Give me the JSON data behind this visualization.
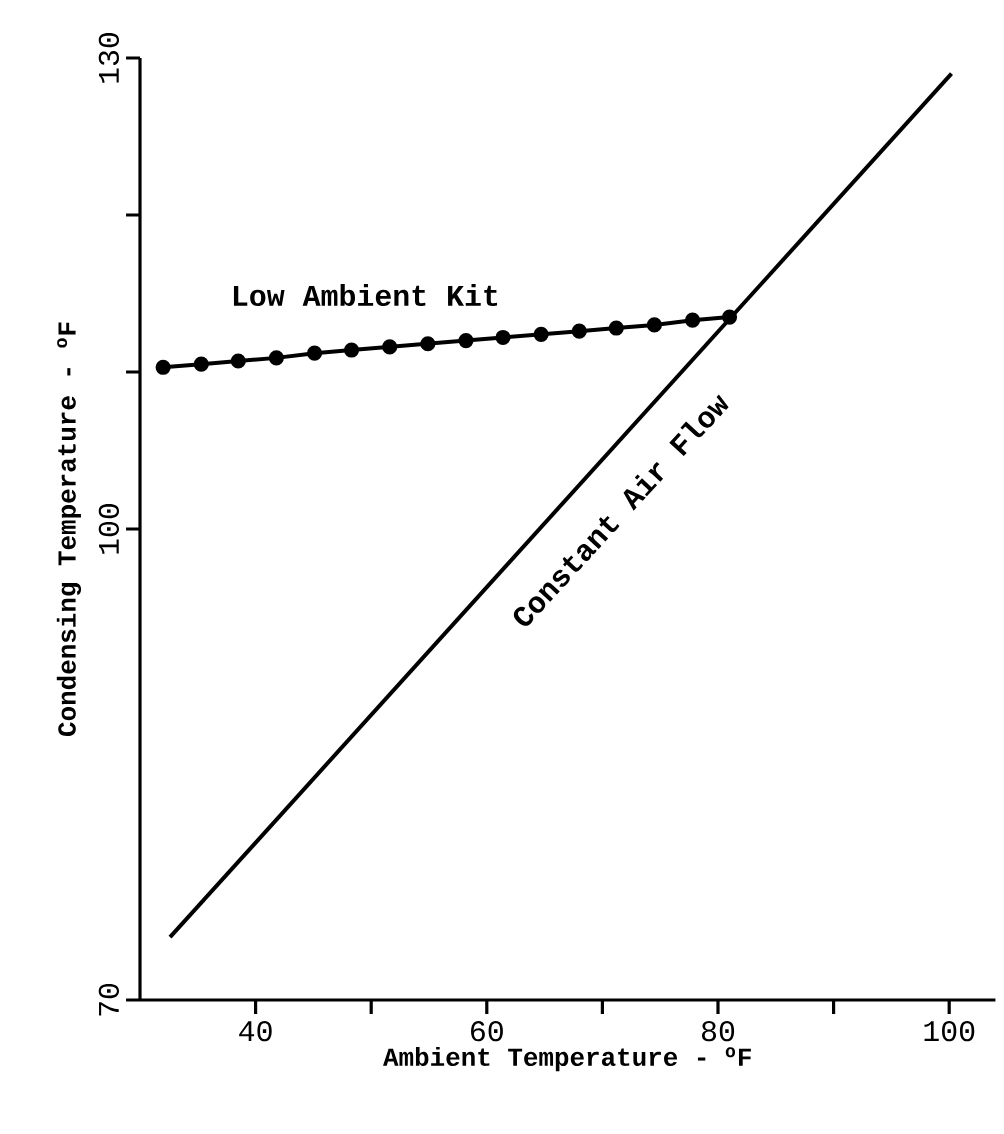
{
  "chart_data": {
    "type": "line",
    "xlabel": "Ambient Temperature - $^{o}$F",
    "ylabel": "Condensing Temperature - $^{o}$F",
    "xlim": [
      30,
      104
    ],
    "ylim": [
      70,
      130
    ],
    "xticks": [
      40,
      {
        "value": 50,
        "label": null
      },
      60,
      {
        "value": 70,
        "label": null
      },
      80,
      {
        "value": 90,
        "label": null
      },
      100
    ],
    "yticks": [
      70,
      100,
      {
        "value": 110,
        "label": null
      },
      {
        "value": 120,
        "label": null
      },
      130
    ],
    "legend": false,
    "series": [
      {
        "name": "Low Ambient Kit",
        "color": "#000000",
        "marker": "circle",
        "x": [
          32,
          35.3,
          38.5,
          41.8,
          45.1,
          48.3,
          51.6,
          54.9,
          58.2,
          61.4,
          64.7,
          68,
          71.2,
          74.5,
          77.8,
          81
        ],
        "values": [
          110.3,
          110.5,
          110.7,
          110.9,
          111.2,
          111.4,
          111.6,
          111.8,
          112,
          112.2,
          112.4,
          112.6,
          112.8,
          113,
          113.3,
          113.5
        ]
      },
      {
        "name": "Constant Air Flow",
        "color": "#000000",
        "marker": "none",
        "x": [
          32.6,
          100.2
        ],
        "values": [
          74,
          129
        ]
      }
    ]
  }
}
